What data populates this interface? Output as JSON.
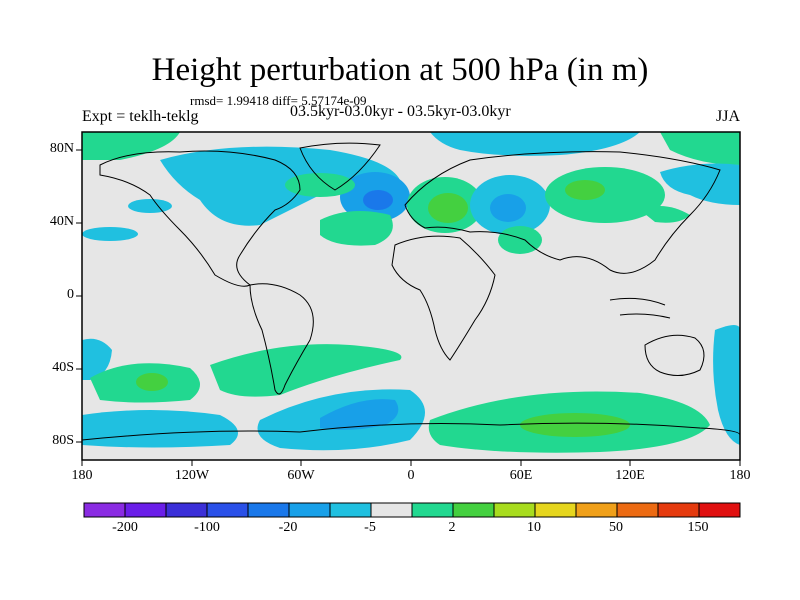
{
  "header": {
    "title": "Height perturbation at 500 hPa (in m)",
    "rmsd_line": "rmsd= 1.99418 diff= 5.57174e-09",
    "experiment": "Expt = teklh-teklg",
    "period": "03.5kyr-03.0kyr - 03.5kyr-03.0kyr",
    "season": "JJA"
  },
  "axes": {
    "x_ticks": [
      "180",
      "120W",
      "60W",
      "0",
      "60E",
      "120E",
      "180"
    ],
    "y_ticks": [
      "80N",
      "40N",
      "0",
      "40S",
      "80S"
    ]
  },
  "colorbar": {
    "labels": [
      "-200",
      "-100",
      "-20",
      "-5",
      "2",
      "10",
      "50",
      "150"
    ],
    "colors": [
      "#8a2be2",
      "#6a1ee8",
      "#3b2fd8",
      "#2a50e8",
      "#1a78ea",
      "#18a0e8",
      "#20c0e0",
      "#e6e6e6",
      "#22d890",
      "#44d040",
      "#a8dc1e",
      "#e6d61e",
      "#f0a01a",
      "#ec6a12",
      "#e53a0e",
      "#e01010"
    ]
  },
  "colors": {
    "land_background": "#e6e6e6",
    "negative_light": "#20c0e0",
    "negative_mid": "#18a0e8",
    "negative_strong": "#1a78ea",
    "positive_light": "#22d890",
    "positive_mid": "#44d040"
  }
}
